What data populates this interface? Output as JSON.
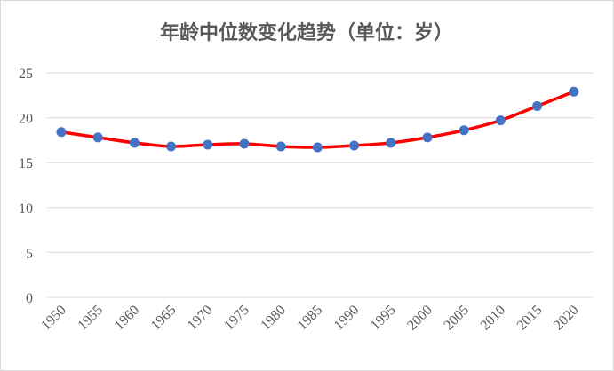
{
  "chart_data": {
    "type": "line",
    "title": "年龄中位数变化趋势（单位：岁）",
    "xlabel": "",
    "ylabel": "",
    "x": [
      "1950",
      "1955",
      "1960",
      "1965",
      "1970",
      "1975",
      "1980",
      "1985",
      "1990",
      "1995",
      "2000",
      "2005",
      "2010",
      "2015",
      "2020"
    ],
    "series": [
      {
        "values": [
          18.4,
          17.8,
          17.2,
          16.8,
          17.0,
          17.1,
          16.8,
          16.7,
          16.9,
          17.2,
          17.8,
          18.6,
          19.7,
          21.3,
          22.9
        ]
      }
    ],
    "ylim": [
      0,
      25
    ],
    "yticks": [
      0,
      5,
      10,
      15,
      20,
      25
    ],
    "grid": true,
    "legend": "none",
    "colors": {
      "line": "#ff0000",
      "marker": "#4472c4",
      "grid": "#d9d9d9"
    }
  }
}
